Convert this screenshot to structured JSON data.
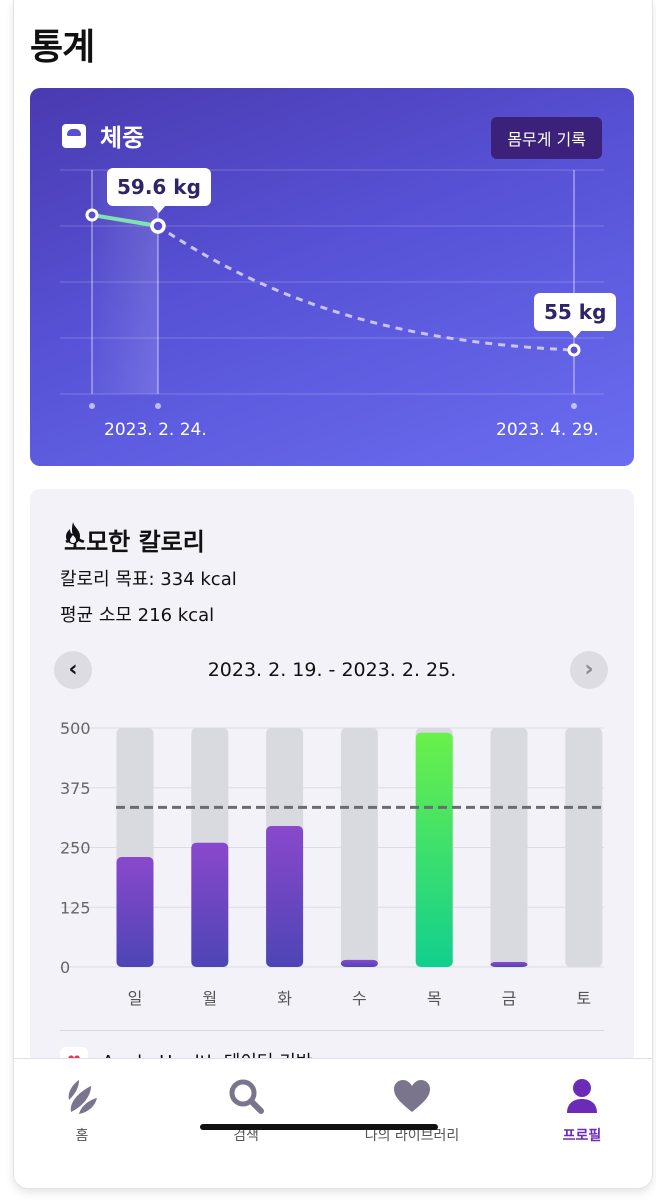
{
  "page": {
    "title": "통계"
  },
  "weight": {
    "title": "체중",
    "record_button": "몸무게 기록",
    "bubble_start": "59.6 kg",
    "bubble_end": "55 kg",
    "date_start": "2023. 2. 24.",
    "date_end": "2023. 4. 29."
  },
  "calories": {
    "title": "소모한 칼로리",
    "goal_text": "칼로리 목표: 334 kcal",
    "average_text": "평균 소모 216 kcal",
    "range": "2023. 2. 19. - 2023. 2. 25.",
    "prev_label": "‹",
    "next_label": "›",
    "source_text": "Apple Health 데이터 기반"
  },
  "chart_data": {
    "type": "bar",
    "categories": [
      "일",
      "월",
      "화",
      "수",
      "목",
      "금",
      "토"
    ],
    "values": [
      230,
      260,
      295,
      15,
      490,
      8,
      0
    ],
    "goal": 334,
    "ylim": [
      0,
      500
    ],
    "yticks": [
      0,
      125,
      250,
      375,
      500
    ],
    "title": "",
    "xlabel": "",
    "ylabel": "",
    "bar_color": "#6a3fc4",
    "highlight_color": "#2ad47a",
    "track_color": "#d9d9e0"
  },
  "tabs": [
    {
      "label": "홈",
      "icon": "home-leaf-icon",
      "active": false
    },
    {
      "label": "검색",
      "icon": "search-icon",
      "active": false
    },
    {
      "label": "나의 라이브러리",
      "icon": "heart-icon",
      "active": false
    },
    {
      "label": "프로필",
      "icon": "profile-icon",
      "active": true
    }
  ]
}
